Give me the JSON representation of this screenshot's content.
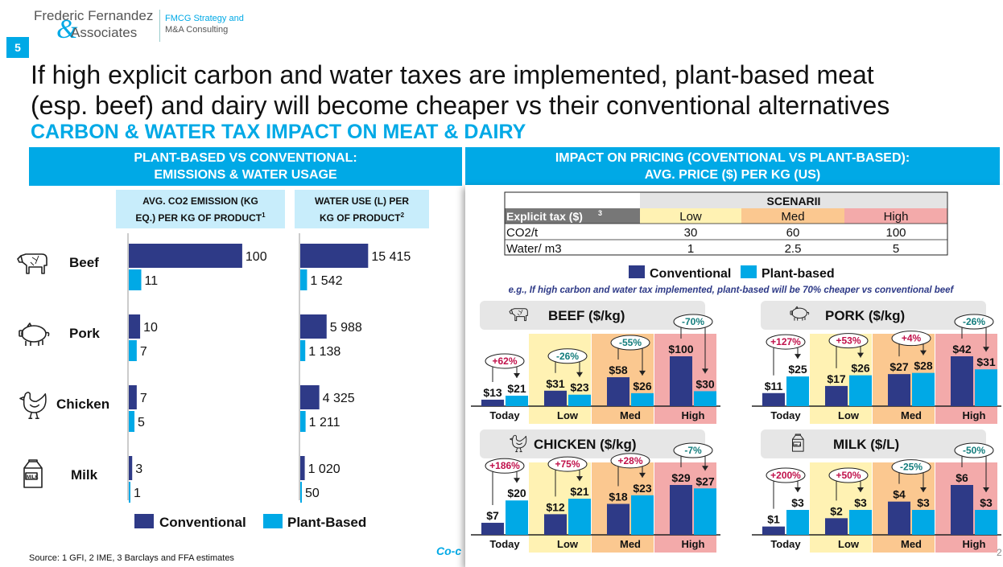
{
  "brand": {
    "name_line1": "Frederic Fernandez",
    "name_amp": "&",
    "name_line2": "Associates",
    "tagline_1": "FMCG Strategy and",
    "tagline_2": "M&A Consulting"
  },
  "slide_number": "5",
  "title_line1": "If high explicit carbon and water taxes are implemented, plant-based meat",
  "title_line2": "(esp. beef) and dairy will become cheaper vs their conventional alternatives",
  "subtitle": "CARBON & WATER TAX IMPACT ON MEAT & DAIRY",
  "left_band_line1": "PLANT-BASED VS CONVENTIONAL:",
  "left_band_line2": "EMISSIONS  & WATER USAGE",
  "right_band_line1": "IMPACT ON PRICING (COVENTIONAL VS PLANT-BASED):",
  "right_band_line2": "AVG. PRICE ($) PER KG (US)",
  "co2_header_line1": "AVG. CO2 EMISSION (KG",
  "co2_header_line2": "EQ.) PER KG OF PRODUCT",
  "co2_header_sup": "1",
  "water_header_line1": "WATER USE (L) PER",
  "water_header_line2": "KG OF PRODUCT",
  "water_header_sup": "2",
  "footnote": "Source: 1 GFI, 2 IME, 3 Barclays and FFA estimates",
  "cut_text": "Co-c",
  "page_mark": "2",
  "colors": {
    "conventional": "#2e3a87",
    "plant": "#00a9e6",
    "low": "#fff2b3",
    "med": "#fbc890",
    "high": "#f3aaaa",
    "red_text": "#c0104a",
    "teal_text": "#127c7c"
  },
  "chart_data": [
    {
      "type": "bar",
      "orientation": "horizontal",
      "categories": [
        "Beef",
        "Pork",
        "Chicken",
        "Milk"
      ],
      "icons": [
        "cow-icon",
        "pig-icon",
        "chicken-icon",
        "milk-carton-icon"
      ],
      "series": [
        {
          "name": "Conventional",
          "values": [
            100,
            10,
            7,
            3
          ],
          "labels": [
            "100",
            "10",
            "7",
            "3"
          ]
        },
        {
          "name": "Plant-Based",
          "values": [
            11,
            7,
            5,
            1
          ],
          "labels": [
            "11",
            "7",
            "5",
            "1"
          ]
        }
      ],
      "xlim": [
        0,
        110
      ]
    },
    {
      "type": "bar",
      "orientation": "horizontal",
      "categories": [
        "Beef",
        "Pork",
        "Chicken",
        "Milk"
      ],
      "series": [
        {
          "name": "Conventional",
          "values": [
            15415,
            5988,
            4325,
            1020
          ],
          "labels": [
            "15 415",
            "5 988",
            "4 325",
            "1 020"
          ]
        },
        {
          "name": "Plant-Based",
          "values": [
            1542,
            1138,
            1211,
            50
          ],
          "labels": [
            "1 542",
            "1 138",
            "1 211",
            "50"
          ]
        }
      ],
      "xlim": [
        0,
        17000
      ]
    },
    {
      "type": "table",
      "group_header": "SCENARII",
      "row_header": "Explicit tax ($)",
      "row_header_sup": "3",
      "columns": [
        "Low",
        "Med",
        "High"
      ],
      "rows": [
        {
          "label": "CO2/t",
          "values": [
            "30",
            "60",
            "100"
          ]
        },
        {
          "label": "Water/ m3",
          "values": [
            "1",
            "2.5",
            "5"
          ]
        }
      ]
    },
    {
      "type": "bar",
      "legend": [
        "Conventional",
        "Plant-based"
      ],
      "note": "e.g., If high carbon and water tax implemented, plant-based will be 70% cheaper vs conventional beef",
      "scenarios": [
        "Today",
        "Low",
        "Med",
        "High"
      ],
      "panels": [
        {
          "title": "BEEF ($/kg)",
          "icon": "cow-icon",
          "ymax": 100,
          "conventional": [
            13,
            31,
            58,
            100
          ],
          "plant": [
            21,
            23,
            26,
            30
          ],
          "conventional_labels": [
            "$13",
            "$31",
            "$58",
            "$100"
          ],
          "plant_labels": [
            "$21",
            "$23",
            "$26",
            "$30"
          ],
          "changes": [
            "+62%",
            "-26%",
            "-55%",
            "-70%"
          ]
        },
        {
          "title": "PORK ($/kg)",
          "icon": "pig-icon",
          "ymax": 42,
          "conventional": [
            11,
            17,
            27,
            42
          ],
          "plant": [
            25,
            26,
            28,
            31
          ],
          "conventional_labels": [
            "$11",
            "$17",
            "$27",
            "$42"
          ],
          "plant_labels": [
            "$25",
            "$26",
            "$28",
            "$31"
          ],
          "changes": [
            "+127%",
            "+53%",
            "+4%",
            "-26%"
          ]
        },
        {
          "title": "CHICKEN ($/kg)",
          "icon": "chicken-icon",
          "ymax": 29,
          "conventional": [
            7,
            12,
            18,
            29
          ],
          "plant": [
            20,
            21,
            23,
            27
          ],
          "conventional_labels": [
            "$7",
            "$12",
            "$18",
            "$29"
          ],
          "plant_labels": [
            "$20",
            "$21",
            "$23",
            "$27"
          ],
          "changes": [
            "+186%",
            "+75%",
            "+28%",
            "-7%"
          ]
        },
        {
          "title": "MILK ($/L)",
          "icon": "milk-carton-icon",
          "ymax": 6,
          "conventional": [
            1,
            2,
            4,
            6
          ],
          "plant": [
            3,
            3,
            3,
            3
          ],
          "conventional_labels": [
            "$1",
            "$2",
            "$4",
            "$6"
          ],
          "plant_labels": [
            "$3",
            "$3",
            "$3",
            "$3"
          ],
          "changes": [
            "+200%",
            "+50%",
            "-25%",
            "-50%"
          ]
        }
      ]
    }
  ],
  "left_legend": {
    "conventional": "Conventional",
    "plant": "Plant-Based"
  }
}
